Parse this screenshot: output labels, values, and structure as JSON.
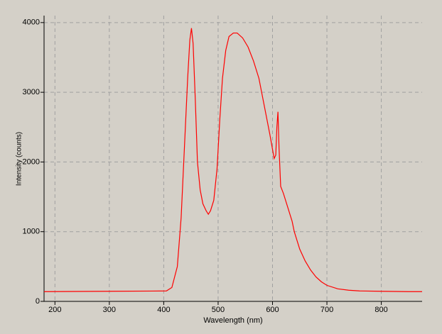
{
  "chart_data": {
    "type": "line",
    "x_label": "Wavelength (nm)",
    "y_label": "Intensity (counts)",
    "x": [
      180,
      300,
      380,
      405,
      415,
      425,
      432,
      438,
      444,
      448,
      451,
      454,
      458,
      462,
      467,
      472,
      478,
      482,
      486,
      492,
      498,
      503,
      508,
      514,
      520,
      528,
      535,
      545,
      555,
      565,
      575,
      585,
      595,
      603,
      606,
      608,
      610,
      612,
      615,
      620,
      628,
      634,
      636,
      640,
      650,
      660,
      670,
      680,
      690,
      700,
      720,
      740,
      760,
      800,
      850,
      875
    ],
    "series": [
      {
        "color": "#ff0000",
        "values": [
          140,
          145,
          148,
          150,
          200,
          500,
          1200,
          2200,
          3200,
          3750,
          3920,
          3700,
          2900,
          2000,
          1600,
          1400,
          1300,
          1250,
          1300,
          1450,
          1900,
          2600,
          3200,
          3600,
          3800,
          3850,
          3850,
          3780,
          3650,
          3450,
          3200,
          2800,
          2400,
          2050,
          2100,
          2500,
          2720,
          2200,
          1650,
          1550,
          1350,
          1200,
          1150,
          1000,
          750,
          580,
          450,
          350,
          280,
          230,
          180,
          160,
          150,
          145,
          140,
          140
        ]
      }
    ],
    "xlim": [
      180,
      875
    ],
    "ylim": [
      0,
      4100
    ],
    "xticks": [
      200,
      300,
      400,
      500,
      600,
      700,
      800
    ],
    "yticks": [
      0,
      1000,
      2000,
      3000,
      4000
    ],
    "grid": true
  }
}
